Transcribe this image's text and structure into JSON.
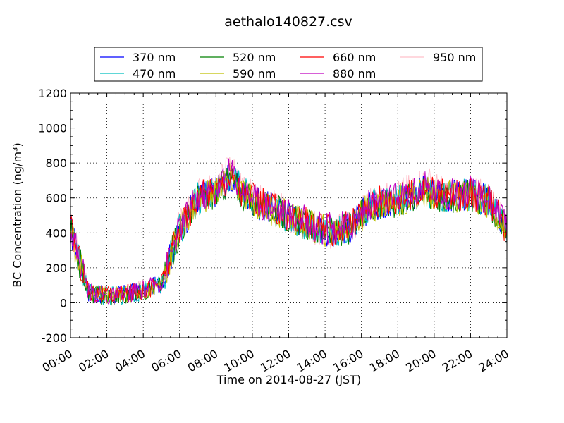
{
  "chart_data": {
    "type": "line",
    "title": "aethalo140827.csv",
    "xlabel": "Time on 2014-08-27 (JST)",
    "ylabel": "BC Concentration (ng/m³)",
    "ylim": [
      -200,
      1200
    ],
    "xlim": [
      "00:00",
      "24:00"
    ],
    "grid": true,
    "legend_position": "top",
    "x_ticks": [
      "00:00",
      "02:00",
      "04:00",
      "06:00",
      "08:00",
      "10:00",
      "12:00",
      "14:00",
      "16:00",
      "18:00",
      "20:00",
      "22:00",
      "24:00"
    ],
    "y_ticks": [
      -200,
      0,
      200,
      400,
      600,
      800,
      1000,
      1200
    ],
    "x_hours": [
      0,
      1,
      2,
      3,
      4,
      5,
      6,
      7,
      8,
      8.8,
      9.5,
      10.5,
      11.5,
      12.5,
      13.5,
      14.5,
      15.5,
      16.5,
      18,
      19.5,
      20.5,
      22,
      23,
      24
    ],
    "series": [
      {
        "name": "370 nm",
        "color": "#0000ff",
        "values": [
          420,
          60,
          40,
          50,
          70,
          110,
          420,
          600,
          640,
          720,
          620,
          560,
          520,
          470,
          430,
          410,
          440,
          560,
          590,
          640,
          610,
          620,
          580,
          420
        ]
      },
      {
        "name": "470 nm",
        "color": "#00bfbf",
        "values": [
          415,
          58,
          38,
          48,
          68,
          108,
          418,
          598,
          638,
          730,
          640,
          558,
          518,
          468,
          428,
          405,
          438,
          558,
          588,
          638,
          608,
          618,
          578,
          418
        ]
      },
      {
        "name": "520 nm",
        "color": "#008000",
        "values": [
          410,
          55,
          35,
          45,
          65,
          105,
          415,
          595,
          635,
          715,
          615,
          555,
          515,
          465,
          425,
          400,
          435,
          555,
          585,
          635,
          605,
          615,
          575,
          410
        ]
      },
      {
        "name": "590 nm",
        "color": "#bfbf00",
        "values": [
          412,
          57,
          37,
          47,
          67,
          107,
          417,
          597,
          637,
          718,
          618,
          557,
          517,
          467,
          427,
          402,
          437,
          557,
          587,
          637,
          607,
          617,
          577,
          412
        ]
      },
      {
        "name": "660 nm",
        "color": "#ff0000",
        "values": [
          425,
          62,
          42,
          52,
          72,
          112,
          425,
          605,
          645,
          725,
          625,
          565,
          525,
          475,
          435,
          415,
          445,
          565,
          595,
          645,
          615,
          625,
          585,
          425
        ]
      },
      {
        "name": "880 nm",
        "color": "#bf00bf",
        "values": [
          430,
          65,
          30,
          45,
          75,
          115,
          430,
          610,
          650,
          760,
          650,
          570,
          530,
          480,
          440,
          420,
          450,
          570,
          600,
          660,
          620,
          630,
          590,
          430
        ]
      },
      {
        "name": "950 nm",
        "color": "#ffc0cb",
        "values": [
          440,
          70,
          35,
          55,
          80,
          120,
          440,
          620,
          660,
          790,
          640,
          580,
          540,
          470,
          420,
          400,
          460,
          580,
          610,
          700,
          630,
          640,
          600,
          440
        ]
      }
    ]
  }
}
